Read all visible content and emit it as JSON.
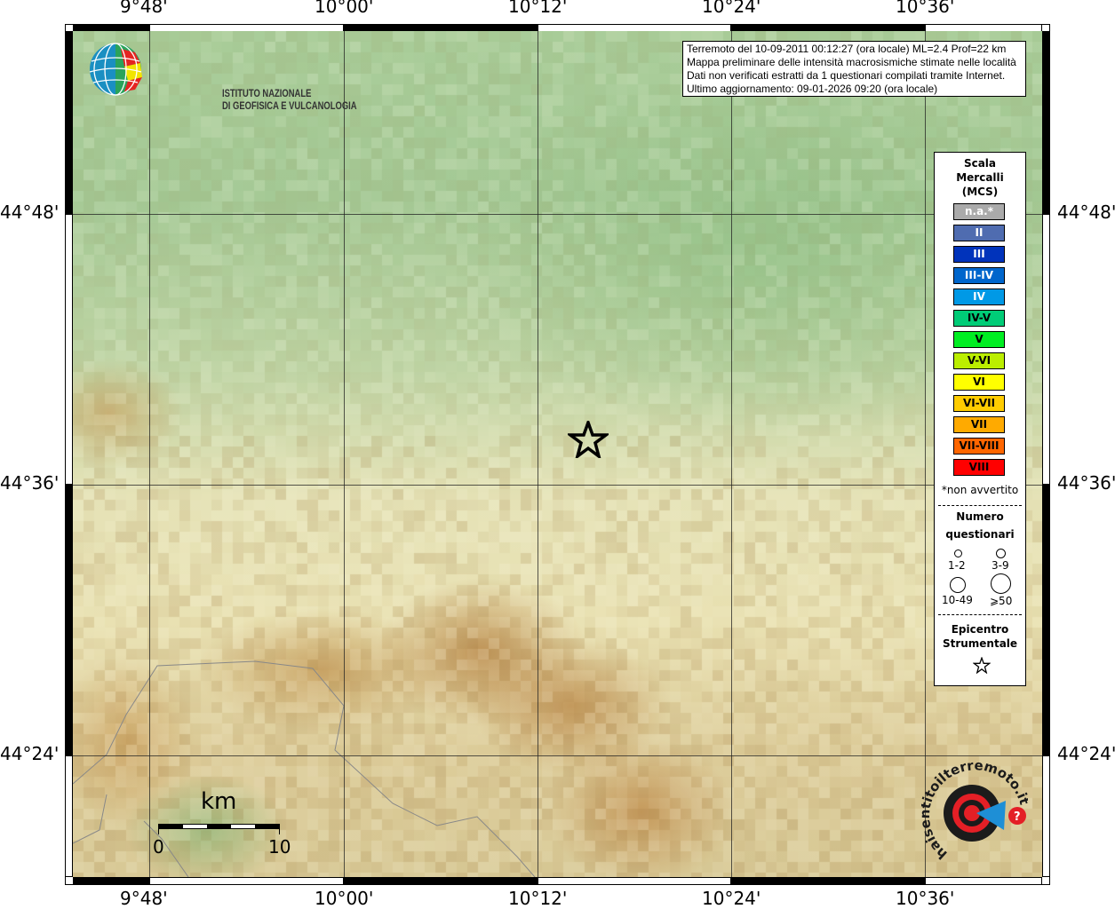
{
  "info_box": {
    "lines": [
      "Terremoto del 10-09-2011 00:12:27 (ora locale) ML=2.4 Prof=22 km",
      "Mappa preliminare delle intensità macrosismiche stimate nelle località",
      "Dati non verificati estratti da 1 questionari compilati tramite Internet.",
      "Ultimo aggiornamento: 09-01-2026 09:20 (ora locale)"
    ]
  },
  "logo_ingv": {
    "line1": "ISTITUTO NAZIONALE",
    "line2": "DI GEOFISICA E VULCANOLOGIA"
  },
  "logo_hsit": {
    "text": "www.haisentitoilterremoto.it"
  },
  "axes": {
    "lon_labels": [
      "9°48'",
      "10°00'",
      "10°12'",
      "10°24'",
      "10°36'"
    ],
    "lat_labels": [
      "44°48'",
      "44°36'",
      "44°24'"
    ]
  },
  "legend": {
    "title": [
      "Scala",
      "Mercalli",
      "(MCS)"
    ],
    "items": [
      {
        "label": "n.a.*",
        "color": "#aaaaaa",
        "text_color": "#ffffff"
      },
      {
        "label": "II",
        "color": "#4f6cb0",
        "text_color": "#ffffff"
      },
      {
        "label": "III",
        "color": "#0033bb",
        "text_color": "#ffffff"
      },
      {
        "label": "III-IV",
        "color": "#0066cc",
        "text_color": "#ffffff"
      },
      {
        "label": "IV",
        "color": "#0099e6",
        "text_color": "#ffffff"
      },
      {
        "label": "IV-V",
        "color": "#00cc77",
        "text_color": "#000000"
      },
      {
        "label": "V",
        "color": "#00ee22",
        "text_color": "#000000"
      },
      {
        "label": "V-VI",
        "color": "#bbee00",
        "text_color": "#000000"
      },
      {
        "label": "VI",
        "color": "#ffff00",
        "text_color": "#000000"
      },
      {
        "label": "VI-VII",
        "color": "#ffcc00",
        "text_color": "#000000"
      },
      {
        "label": "VII",
        "color": "#ffaa00",
        "text_color": "#000000"
      },
      {
        "label": "VII-VIII",
        "color": "#ff6600",
        "text_color": "#000000"
      },
      {
        "label": "VIII",
        "color": "#ff0000",
        "text_color": "#000000"
      }
    ],
    "footnote": "*non avvertito",
    "count_title": [
      "Numero",
      "questionari"
    ],
    "count_classes": [
      "1-2",
      "3-9",
      "10-49",
      "⩾50"
    ],
    "epicenter_title": [
      "Epicentro",
      "Strumentale"
    ]
  },
  "scale_bar": {
    "unit": "km",
    "min": "0",
    "max": "10"
  },
  "epicenter": {
    "icon": "star-icon"
  }
}
